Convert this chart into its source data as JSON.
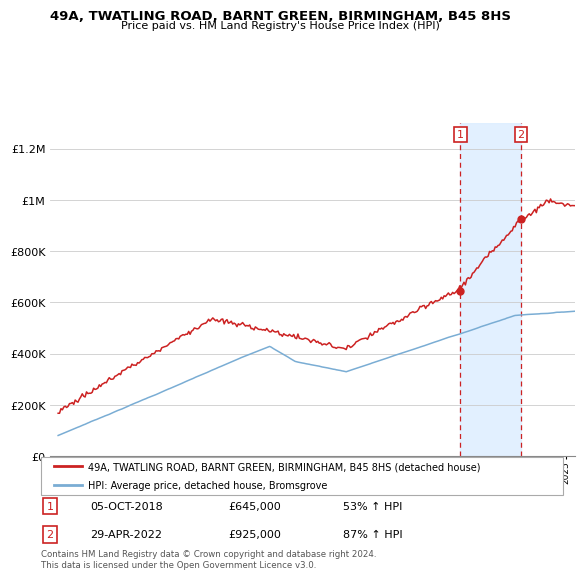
{
  "title": "49A, TWATLING ROAD, BARNT GREEN, BIRMINGHAM, B45 8HS",
  "subtitle": "Price paid vs. HM Land Registry's House Price Index (HPI)",
  "hpi_color": "#7aadd4",
  "price_color": "#cc2222",
  "highlight_color_bg": "#ddeeff",
  "sale1_date": "05-OCT-2018",
  "sale1_price": "£645,000",
  "sale1_pct": "53% ↑ HPI",
  "sale2_date": "29-APR-2022",
  "sale2_price": "£925,000",
  "sale2_pct": "87% ↑ HPI",
  "legend1": "49A, TWATLING ROAD, BARNT GREEN, BIRMINGHAM, B45 8HS (detached house)",
  "legend2": "HPI: Average price, detached house, Bromsgrove",
  "footer": "Contains HM Land Registry data © Crown copyright and database right 2024.\nThis data is licensed under the Open Government Licence v3.0.",
  "sale1_x": 2018.75,
  "sale1_y": 645000,
  "sale2_x": 2022.33,
  "sale2_y": 925000,
  "ylim": [
    0,
    1300000
  ],
  "yticks": [
    0,
    200000,
    400000,
    600000,
    800000,
    1000000,
    1200000
  ],
  "xmin": 1995.0,
  "xmax": 2025.5
}
